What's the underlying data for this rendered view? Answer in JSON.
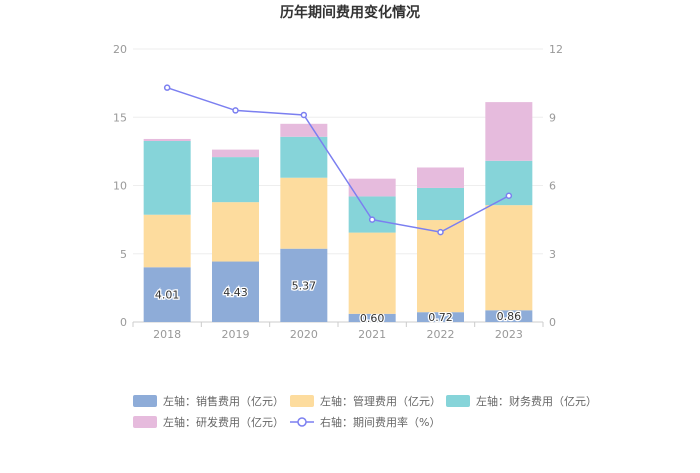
{
  "chart_data": {
    "type": "bar",
    "stacked": true,
    "title": "历年期间费用变化情况",
    "categories": [
      "2018",
      "2019",
      "2020",
      "2021",
      "2022",
      "2023"
    ],
    "left_axis": {
      "ylim": [
        0,
        20
      ],
      "ticks": [
        "0",
        "5",
        "10",
        "15",
        "20"
      ]
    },
    "right_axis": {
      "ylim": [
        0,
        12
      ],
      "ticks": [
        "0",
        "3",
        "6",
        "9",
        "12"
      ]
    },
    "series": [
      {
        "name": "左轴：销售费用（亿元）",
        "axis": "left",
        "type": "bar",
        "color": "#8eacd8",
        "values": [
          4.01,
          4.43,
          5.37,
          0.6,
          0.72,
          0.86
        ],
        "labels": [
          "4.01",
          "4.43",
          "5.37",
          "0.60",
          "0.72",
          "0.86"
        ]
      },
      {
        "name": "左轴：管理费用（亿元）",
        "axis": "left",
        "type": "bar",
        "color": "#fddc9e",
        "values": [
          3.85,
          4.35,
          5.2,
          5.95,
          6.75,
          7.7
        ]
      },
      {
        "name": "左轴：财务费用（亿元）",
        "axis": "left",
        "type": "bar",
        "color": "#86d4d9",
        "values": [
          5.4,
          3.3,
          3.0,
          2.65,
          2.35,
          3.25
        ]
      },
      {
        "name": "左轴：研发费用（亿元）",
        "axis": "left",
        "type": "bar",
        "color": "#e6bbdd",
        "values": [
          0.15,
          0.55,
          0.95,
          1.3,
          1.5,
          4.3
        ]
      },
      {
        "name": "右轴：期间费用率（%）",
        "axis": "right",
        "type": "line",
        "color": "#7b7ff0",
        "values": [
          10.3,
          9.3,
          9.1,
          4.5,
          3.95,
          5.55
        ]
      }
    ]
  }
}
